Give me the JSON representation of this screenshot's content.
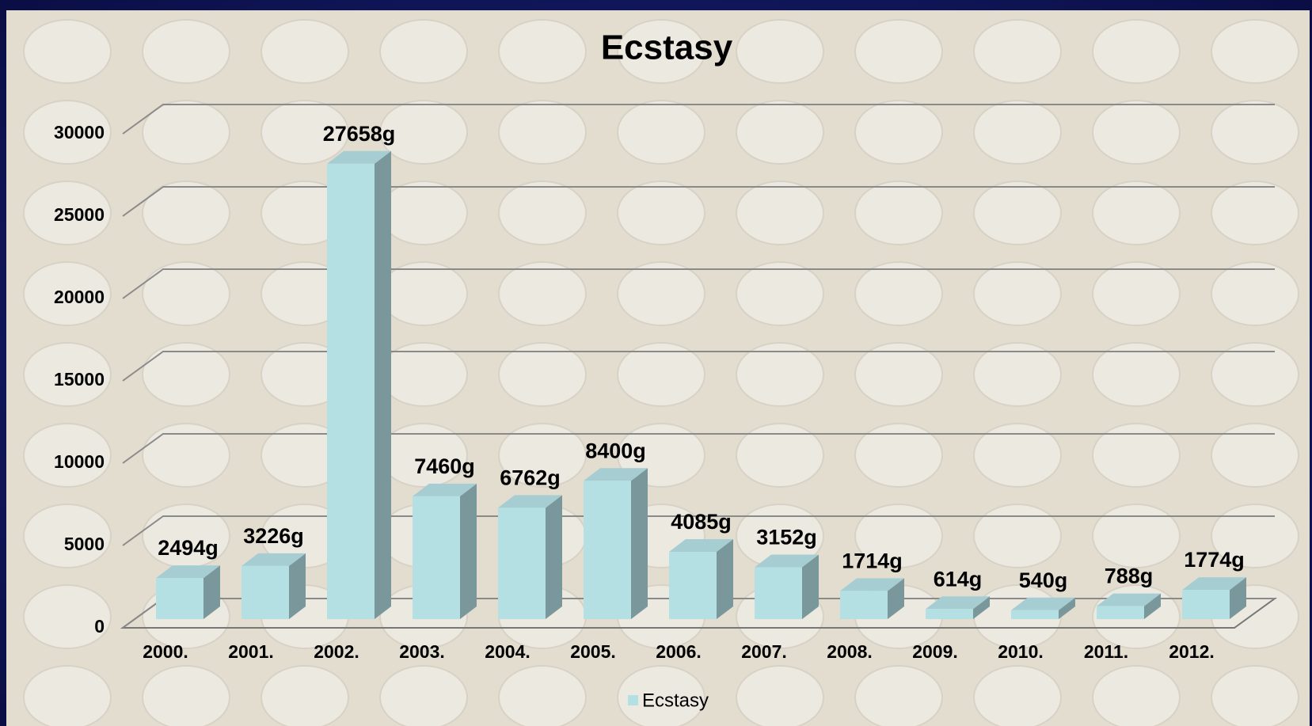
{
  "chart_data": {
    "type": "bar",
    "title": "Ecstasy",
    "categories": [
      "2000.",
      "2001.",
      "2002.",
      "2003.",
      "2004.",
      "2005.",
      "2006.",
      "2007.",
      "2008.",
      "2009.",
      "2010.",
      "2011.",
      "2012."
    ],
    "series": [
      {
        "name": "Ecstasy",
        "color": "#b4e0e4",
        "values": [
          2494,
          3226,
          27658,
          7460,
          6762,
          8400,
          4085,
          3152,
          1714,
          614,
          540,
          788,
          1774
        ],
        "value_labels": [
          "2494g",
          "3226g",
          "27658g",
          "7460g",
          "6762g",
          "8400g",
          "4085g",
          "3152g",
          "1714g",
          "614g",
          "540g",
          "788g",
          "1774g"
        ]
      }
    ],
    "ylim": [
      0,
      30000
    ],
    "yticks": [
      0,
      5000,
      10000,
      15000,
      20000,
      25000,
      30000
    ],
    "grid": true,
    "legend": "bottom"
  }
}
